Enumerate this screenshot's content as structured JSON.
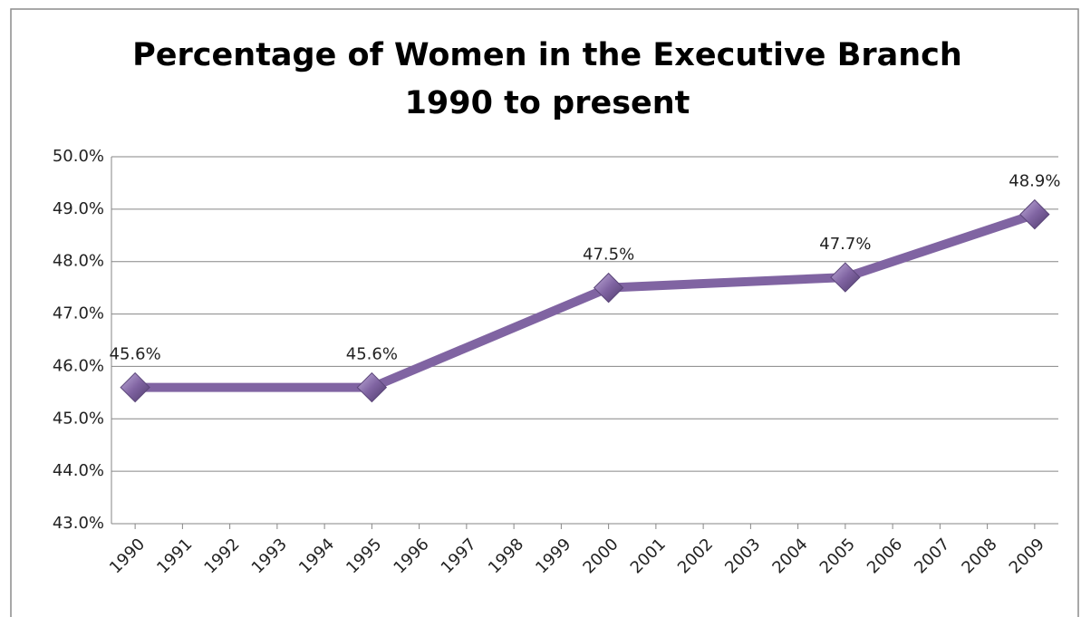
{
  "chart_data": {
    "type": "line",
    "title": "Percentage of Women in the Executive Branch",
    "subtitle": "1990 to present",
    "x": [
      1990,
      1995,
      2000,
      2005,
      2009
    ],
    "series": [
      {
        "color": "#8064a2",
        "values": [
          45.6,
          45.6,
          47.5,
          47.7,
          48.9
        ],
        "value_labels": [
          "45.6%",
          "45.6%",
          "47.5%",
          "47.7%",
          "48.9%"
        ]
      }
    ],
    "xlim": [
      1989.5,
      2009.5
    ],
    "xticks": [
      1990,
      1991,
      1992,
      1993,
      1994,
      1995,
      1996,
      1997,
      1998,
      1999,
      2000,
      2001,
      2002,
      2003,
      2004,
      2005,
      2006,
      2007,
      2008,
      2009
    ],
    "ylim": [
      43,
      50
    ],
    "yticks": [
      {
        "value": 43,
        "label": "43.0%"
      },
      {
        "value": 44,
        "label": "44.0%"
      },
      {
        "value": 45,
        "label": "45.0%"
      },
      {
        "value": 46,
        "label": "46.0%"
      },
      {
        "value": 47,
        "label": "47.0%"
      },
      {
        "value": 48,
        "label": "48.0%"
      },
      {
        "value": 49,
        "label": "49.0%"
      },
      {
        "value": 50,
        "label": "50.0%"
      }
    ],
    "grid": true
  }
}
